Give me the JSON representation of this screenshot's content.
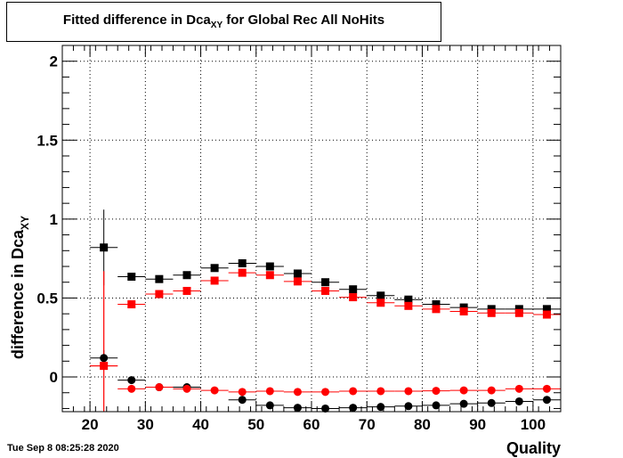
{
  "title": {
    "prefix": "Fitted difference in Dca",
    "subscript": "XY",
    "suffix": " for Global Rec All NoHits"
  },
  "timestamp": "Tue Sep  8 08:25:28 2020",
  "chart_data": {
    "type": "scatter",
    "xlabel": "Quality",
    "ylabel": {
      "main": "difference in Dca",
      "subscript": "XY"
    },
    "xlim": [
      15,
      105
    ],
    "ylim": [
      -0.22,
      2.1
    ],
    "x_ticks": [
      "20",
      "30",
      "40",
      "50",
      "60",
      "70",
      "80",
      "90",
      "100"
    ],
    "y_ticks": [
      "0",
      "0.5",
      "1",
      "1.5",
      "2"
    ],
    "grid": true,
    "x_halfwidth": 2.5,
    "series": [
      {
        "marker": "square",
        "color": "#000000",
        "x": [
          22.5,
          27.5,
          32.5,
          37.5,
          42.5,
          47.5,
          52.5,
          57.5,
          62.5,
          67.5,
          72.5,
          77.5,
          82.5,
          87.5,
          92.5,
          97.5,
          102.5
        ],
        "y": [
          0.82,
          0.635,
          0.62,
          0.645,
          0.69,
          0.72,
          0.7,
          0.655,
          0.6,
          0.555,
          0.515,
          0.49,
          0.46,
          0.44,
          0.43,
          0.43,
          0.43
        ],
        "yerr": [
          0.24,
          0.015,
          0.01,
          0.01,
          0.01,
          0.01,
          0.01,
          0.01,
          0.01,
          0.01,
          0.01,
          0.01,
          0.01,
          0.01,
          0.01,
          0.01,
          0.01
        ]
      },
      {
        "marker": "square",
        "color": "#ff0000",
        "x": [
          22.5,
          27.5,
          32.5,
          37.5,
          42.5,
          47.5,
          52.5,
          57.5,
          62.5,
          67.5,
          72.5,
          77.5,
          82.5,
          87.5,
          92.5,
          97.5,
          102.5
        ],
        "y": [
          0.07,
          0.46,
          0.525,
          0.545,
          0.61,
          0.66,
          0.645,
          0.605,
          0.545,
          0.505,
          0.47,
          0.45,
          0.43,
          0.415,
          0.405,
          0.405,
          0.395
        ],
        "yerr": [
          0.6,
          0.015,
          0.01,
          0.01,
          0.01,
          0.01,
          0.01,
          0.01,
          0.01,
          0.01,
          0.01,
          0.01,
          0.01,
          0.01,
          0.01,
          0.01,
          0.01
        ]
      },
      {
        "marker": "circle",
        "color": "#000000",
        "x": [
          22.5,
          27.5,
          32.5,
          37.5,
          42.5,
          47.5,
          52.5,
          57.5,
          62.5,
          67.5,
          72.5,
          77.5,
          82.5,
          87.5,
          92.5,
          97.5,
          102.5
        ],
        "y": [
          0.12,
          -0.02,
          -0.065,
          -0.065,
          null,
          -0.145,
          -0.18,
          -0.195,
          -0.2,
          -0.195,
          -0.19,
          -0.185,
          -0.18,
          -0.17,
          -0.165,
          -0.155,
          -0.145
        ],
        "yerr": [
          0.05,
          0.01,
          0.01,
          0.01,
          0.01,
          0.01,
          0.01,
          0.01,
          0.01,
          0.01,
          0.01,
          0.01,
          0.01,
          0.01,
          0.01,
          0.01,
          0.01
        ]
      },
      {
        "marker": "circle",
        "color": "#ff0000",
        "x": [
          22.5,
          27.5,
          32.5,
          37.5,
          42.5,
          47.5,
          52.5,
          57.5,
          62.5,
          67.5,
          72.5,
          77.5,
          82.5,
          87.5,
          92.5,
          97.5,
          102.5
        ],
        "y": [
          0.07,
          -0.075,
          -0.065,
          -0.075,
          -0.085,
          -0.095,
          -0.09,
          -0.095,
          -0.095,
          -0.09,
          -0.09,
          -0.09,
          -0.088,
          -0.085,
          -0.085,
          -0.075,
          -0.075
        ],
        "yerr": [
          0.6,
          0.01,
          0.01,
          0.01,
          0.01,
          0.01,
          0.01,
          0.01,
          0.01,
          0.01,
          0.01,
          0.01,
          0.01,
          0.01,
          0.01,
          0.01,
          0.01
        ]
      }
    ]
  }
}
